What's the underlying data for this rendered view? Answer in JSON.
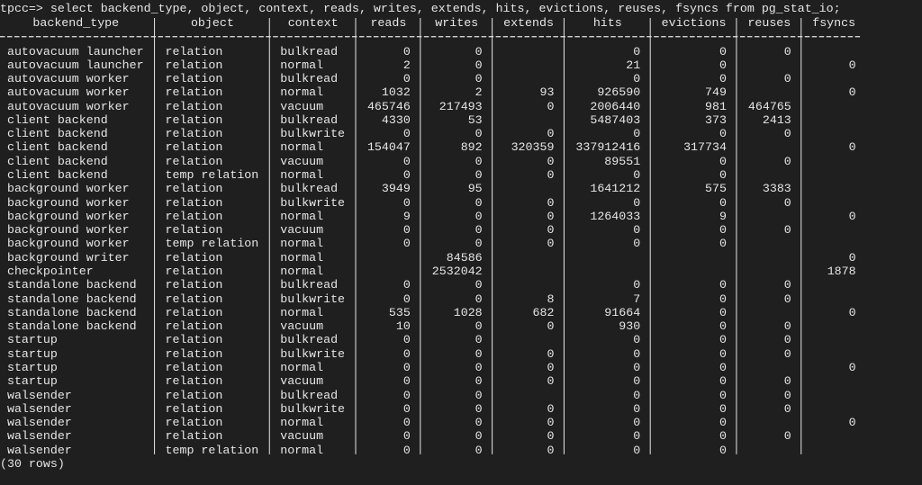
{
  "prompt": "tpcc=> select backend_type, object, context, reads, writes, extends, hits, evictions, reuses, fsyncs from pg_stat_io;",
  "table": {
    "columns": [
      "backend_type",
      "object",
      "context",
      "reads",
      "writes",
      "extends",
      "hits",
      "evictions",
      "reuses",
      "fsyncs"
    ],
    "rows": [
      [
        "autovacuum launcher",
        "relation",
        "bulkread",
        0,
        0,
        null,
        0,
        0,
        0,
        null
      ],
      [
        "autovacuum launcher",
        "relation",
        "normal",
        2,
        0,
        null,
        21,
        0,
        null,
        0
      ],
      [
        "autovacuum worker",
        "relation",
        "bulkread",
        0,
        0,
        null,
        0,
        0,
        0,
        null
      ],
      [
        "autovacuum worker",
        "relation",
        "normal",
        1032,
        2,
        93,
        926590,
        749,
        null,
        0
      ],
      [
        "autovacuum worker",
        "relation",
        "vacuum",
        465746,
        217493,
        0,
        2006440,
        981,
        464765,
        null
      ],
      [
        "client backend",
        "relation",
        "bulkread",
        4330,
        53,
        null,
        5487403,
        373,
        2413,
        null
      ],
      [
        "client backend",
        "relation",
        "bulkwrite",
        0,
        0,
        0,
        0,
        0,
        0,
        null
      ],
      [
        "client backend",
        "relation",
        "normal",
        154047,
        892,
        320359,
        337912416,
        317734,
        null,
        0
      ],
      [
        "client backend",
        "relation",
        "vacuum",
        0,
        0,
        0,
        89551,
        0,
        0,
        null
      ],
      [
        "client backend",
        "temp relation",
        "normal",
        0,
        0,
        0,
        0,
        0,
        null,
        null
      ],
      [
        "background worker",
        "relation",
        "bulkread",
        3949,
        95,
        null,
        1641212,
        575,
        3383,
        null
      ],
      [
        "background worker",
        "relation",
        "bulkwrite",
        0,
        0,
        0,
        0,
        0,
        0,
        null
      ],
      [
        "background worker",
        "relation",
        "normal",
        9,
        0,
        0,
        1264033,
        9,
        null,
        0
      ],
      [
        "background worker",
        "relation",
        "vacuum",
        0,
        0,
        0,
        0,
        0,
        0,
        null
      ],
      [
        "background worker",
        "temp relation",
        "normal",
        0,
        0,
        0,
        0,
        0,
        null,
        null
      ],
      [
        "background writer",
        "relation",
        "normal",
        null,
        84586,
        null,
        null,
        null,
        null,
        0
      ],
      [
        "checkpointer",
        "relation",
        "normal",
        null,
        2532042,
        null,
        null,
        null,
        null,
        1878
      ],
      [
        "standalone backend",
        "relation",
        "bulkread",
        0,
        0,
        null,
        0,
        0,
        0,
        null
      ],
      [
        "standalone backend",
        "relation",
        "bulkwrite",
        0,
        0,
        8,
        7,
        0,
        0,
        null
      ],
      [
        "standalone backend",
        "relation",
        "normal",
        535,
        1028,
        682,
        91664,
        0,
        null,
        0
      ],
      [
        "standalone backend",
        "relation",
        "vacuum",
        10,
        0,
        0,
        930,
        0,
        0,
        null
      ],
      [
        "startup",
        "relation",
        "bulkread",
        0,
        0,
        null,
        0,
        0,
        0,
        null
      ],
      [
        "startup",
        "relation",
        "bulkwrite",
        0,
        0,
        0,
        0,
        0,
        0,
        null
      ],
      [
        "startup",
        "relation",
        "normal",
        0,
        0,
        0,
        0,
        0,
        null,
        0
      ],
      [
        "startup",
        "relation",
        "vacuum",
        0,
        0,
        0,
        0,
        0,
        0,
        null
      ],
      [
        "walsender",
        "relation",
        "bulkread",
        0,
        0,
        null,
        0,
        0,
        0,
        null
      ],
      [
        "walsender",
        "relation",
        "bulkwrite",
        0,
        0,
        0,
        0,
        0,
        0,
        null
      ],
      [
        "walsender",
        "relation",
        "normal",
        0,
        0,
        0,
        0,
        0,
        null,
        0
      ],
      [
        "walsender",
        "relation",
        "vacuum",
        0,
        0,
        0,
        0,
        0,
        0,
        null
      ],
      [
        "walsender",
        "temp relation",
        "normal",
        0,
        0,
        0,
        0,
        0,
        null,
        null
      ]
    ]
  },
  "footer": "(30 rows)"
}
